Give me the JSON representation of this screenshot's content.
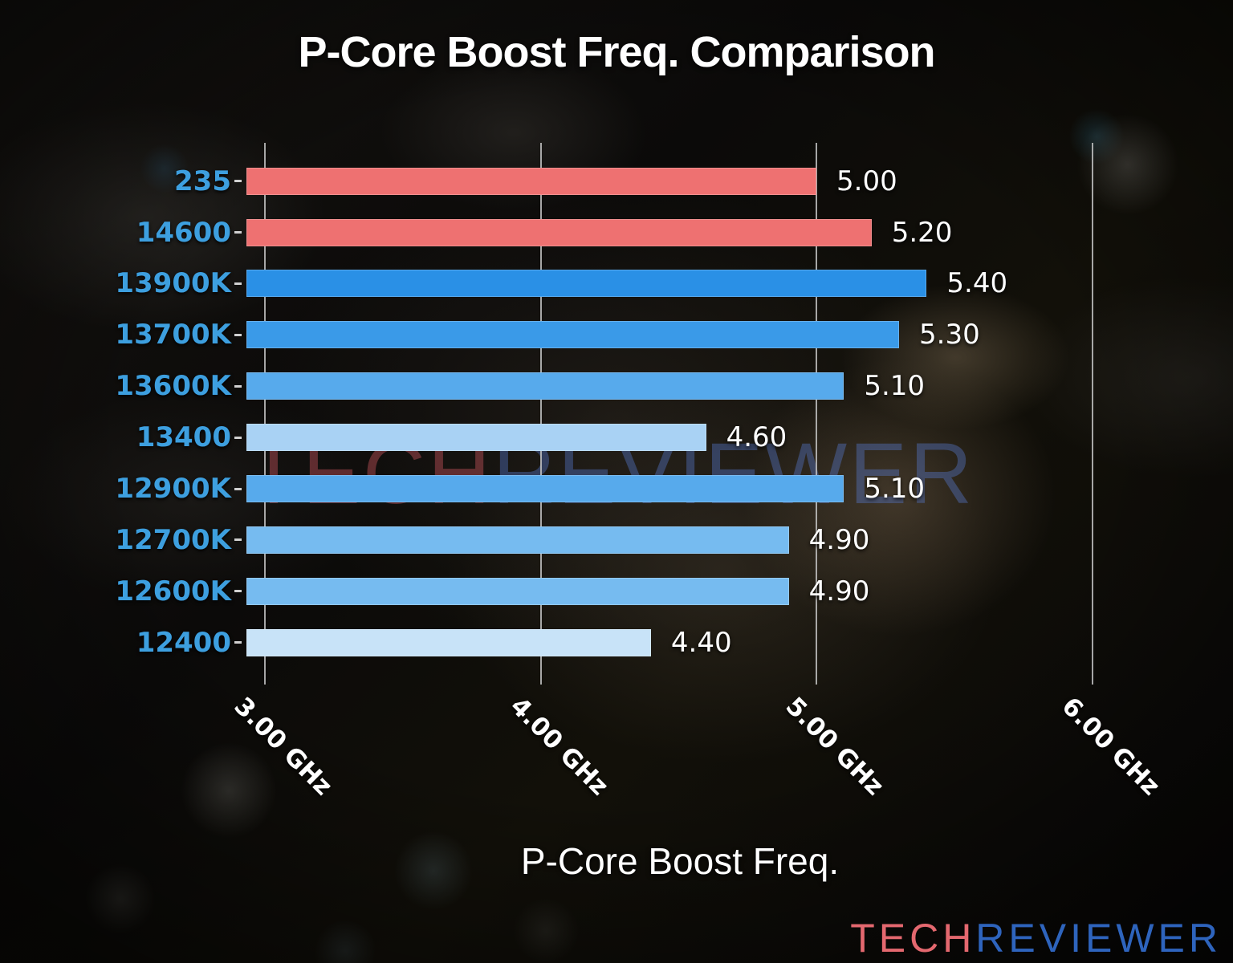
{
  "title": "P-Core Boost Freq. Comparison",
  "watermark": {
    "tech": "TECH",
    "reviewer": "REVIEWER"
  },
  "footer_brand": {
    "tech": "TECH",
    "reviewer": "REVIEWER"
  },
  "chart_data": {
    "type": "bar",
    "orientation": "horizontal",
    "title": "P-Core Boost Freq. Comparison",
    "xlabel": "P-Core Boost Freq.",
    "units": "GHz",
    "categories": [
      "235",
      "14600",
      "13900K",
      "13700K",
      "13600K",
      "13400",
      "12900K",
      "12700K",
      "12600K",
      "12400"
    ],
    "values": [
      5.0,
      5.2,
      5.4,
      5.3,
      5.1,
      4.6,
      5.1,
      4.9,
      4.9,
      4.4
    ],
    "value_labels": [
      "5.00",
      "5.20",
      "5.40",
      "5.30",
      "5.10",
      "4.60",
      "5.10",
      "4.90",
      "4.90",
      "4.40"
    ],
    "bar_colors": [
      "#EE7171",
      "#EE7171",
      "#2A90E6",
      "#3A9AE8",
      "#57AAEC",
      "#A9D2F4",
      "#57AAEC",
      "#76BBF0",
      "#76BBF0",
      "#C8E3F8"
    ],
    "x_ticks": [
      "3.00 GHz",
      "4.00 GHz",
      "5.00 GHz",
      "6.00 GHz"
    ],
    "x_tick_values": [
      3.0,
      4.0,
      5.0,
      6.0
    ],
    "xlim": [
      2.93,
      6.3
    ],
    "grid": true,
    "legend": false
  },
  "colors": {
    "background": "#0C0B0A",
    "gridline": "#C2C2C2",
    "title_text": "#FFFFFF",
    "category_label": "#3D9FDF",
    "value_label": "#FFFFFF",
    "bar_red": "#EE7171",
    "bar_blue_dark": "#2A90E6",
    "bar_blue_light": "#C8E3F8",
    "footer_tech": "#E4686F",
    "footer_reviewer": "#2E64BD",
    "watermark_tech": "rgba(205,85,95,0.42)",
    "watermark_reviewer": "rgba(90,125,215,0.38)"
  }
}
